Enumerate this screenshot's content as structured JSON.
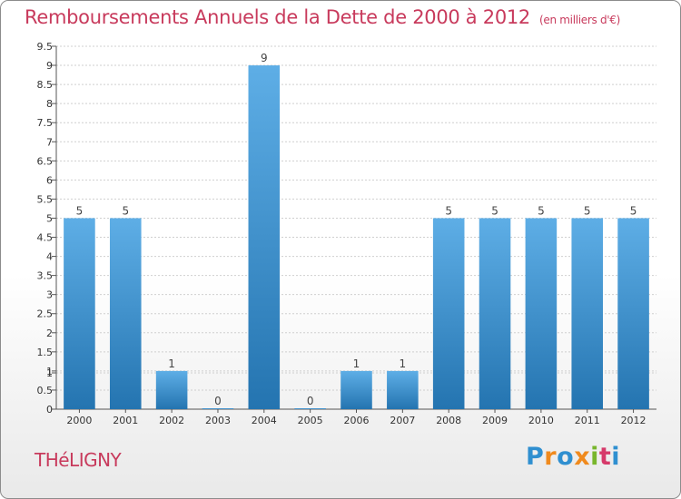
{
  "title": "Remboursements Annuels de la Dette de 2000 à 2012",
  "subtitle": "(en milliers d'€)",
  "town": "THéLIGNY",
  "brand": {
    "text": "Proxiti",
    "letter_colors": [
      "#2f8fd0",
      "#f08a1d",
      "#2f8fd0",
      "#f08a1d",
      "#78b62c",
      "#d63a6a",
      "#2f8fd0"
    ]
  },
  "colors": {
    "title": "#c83a5c",
    "bar_top": "#5eaee6",
    "bar_bottom": "#2474b0",
    "grid": "#cfcfcf"
  },
  "chart_data": {
    "type": "bar",
    "categories": [
      "2000",
      "2001",
      "2002",
      "2003",
      "2004",
      "2005",
      "2006",
      "2007",
      "2008",
      "2009",
      "2010",
      "2011",
      "2012"
    ],
    "values": [
      5,
      5,
      1,
      0,
      9,
      0,
      1,
      1,
      5,
      5,
      5,
      5,
      5
    ],
    "data_labels": [
      "5",
      "5",
      "1",
      "0",
      "9",
      "0",
      "1",
      "1",
      "5",
      "5",
      "5",
      "5",
      "5"
    ],
    "ylim": [
      0,
      9.5
    ],
    "y_ticks": [
      "0",
      "0.5",
      "1",
      "1",
      "1.5",
      "2",
      "2.5",
      "3",
      "3.5",
      "4",
      "4.5",
      "5",
      "5.5",
      "6",
      "6.5",
      "7",
      "7.5",
      "8",
      "8.5",
      "9",
      "9.5"
    ],
    "y_tick_values": [
      0,
      0.5,
      0.95,
      1.0,
      1.5,
      2,
      2.5,
      3,
      3.5,
      4,
      4.5,
      5,
      5.5,
      6,
      6.5,
      7,
      7.5,
      8,
      8.5,
      9,
      9.5
    ],
    "grid": true,
    "xlabel": "",
    "ylabel": ""
  }
}
